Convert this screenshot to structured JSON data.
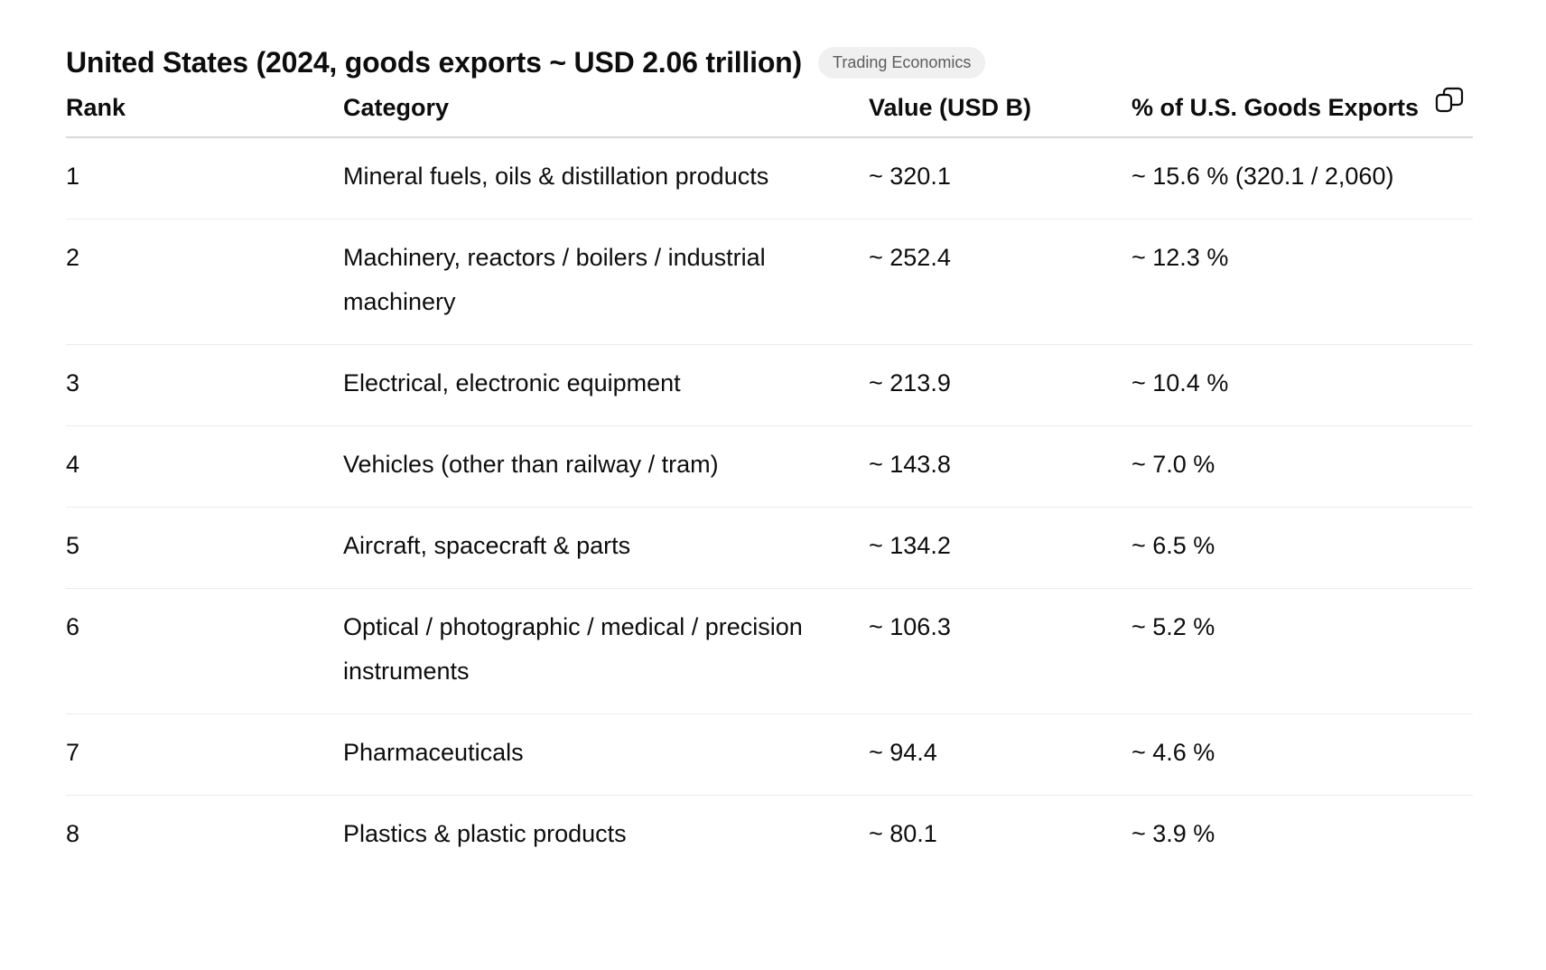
{
  "title": "United States (2024, goods exports ~ USD 2.06 trillion)",
  "source_badge": "Trading Economics",
  "table": {
    "headers": {
      "rank": "Rank",
      "category": "Category",
      "value": "Value (USD B)",
      "percent": "% of U.S. Goods Exports"
    },
    "copy_icon": "copy-icon",
    "rows": [
      {
        "rank": "1",
        "category": "Mineral fuels, oils & distillation products",
        "value": "~ 320.1",
        "percent": "~ 15.6 % (320.1 / 2,060)"
      },
      {
        "rank": "2",
        "category": "Machinery, reactors / boilers / industrial machinery",
        "value": "~ 252.4",
        "percent": "~ 12.3 %"
      },
      {
        "rank": "3",
        "category": "Electrical, electronic equipment",
        "value": "~ 213.9",
        "percent": "~ 10.4 %"
      },
      {
        "rank": "4",
        "category": "Vehicles (other than railway / tram)",
        "value": "~ 143.8",
        "percent": "~ 7.0 %"
      },
      {
        "rank": "5",
        "category": "Aircraft, spacecraft & parts",
        "value": "~ 134.2",
        "percent": "~ 6.5 %"
      },
      {
        "rank": "6",
        "category": "Optical / photographic / medical / precision instruments",
        "value": "~ 106.3",
        "percent": "~ 5.2 %"
      },
      {
        "rank": "7",
        "category": "Pharmaceuticals",
        "value": "~ 94.4",
        "percent": "~ 4.6 %"
      },
      {
        "rank": "8",
        "category": "Plastics & plastic products",
        "value": "~ 80.1",
        "percent": "~ 3.9 %"
      }
    ]
  }
}
